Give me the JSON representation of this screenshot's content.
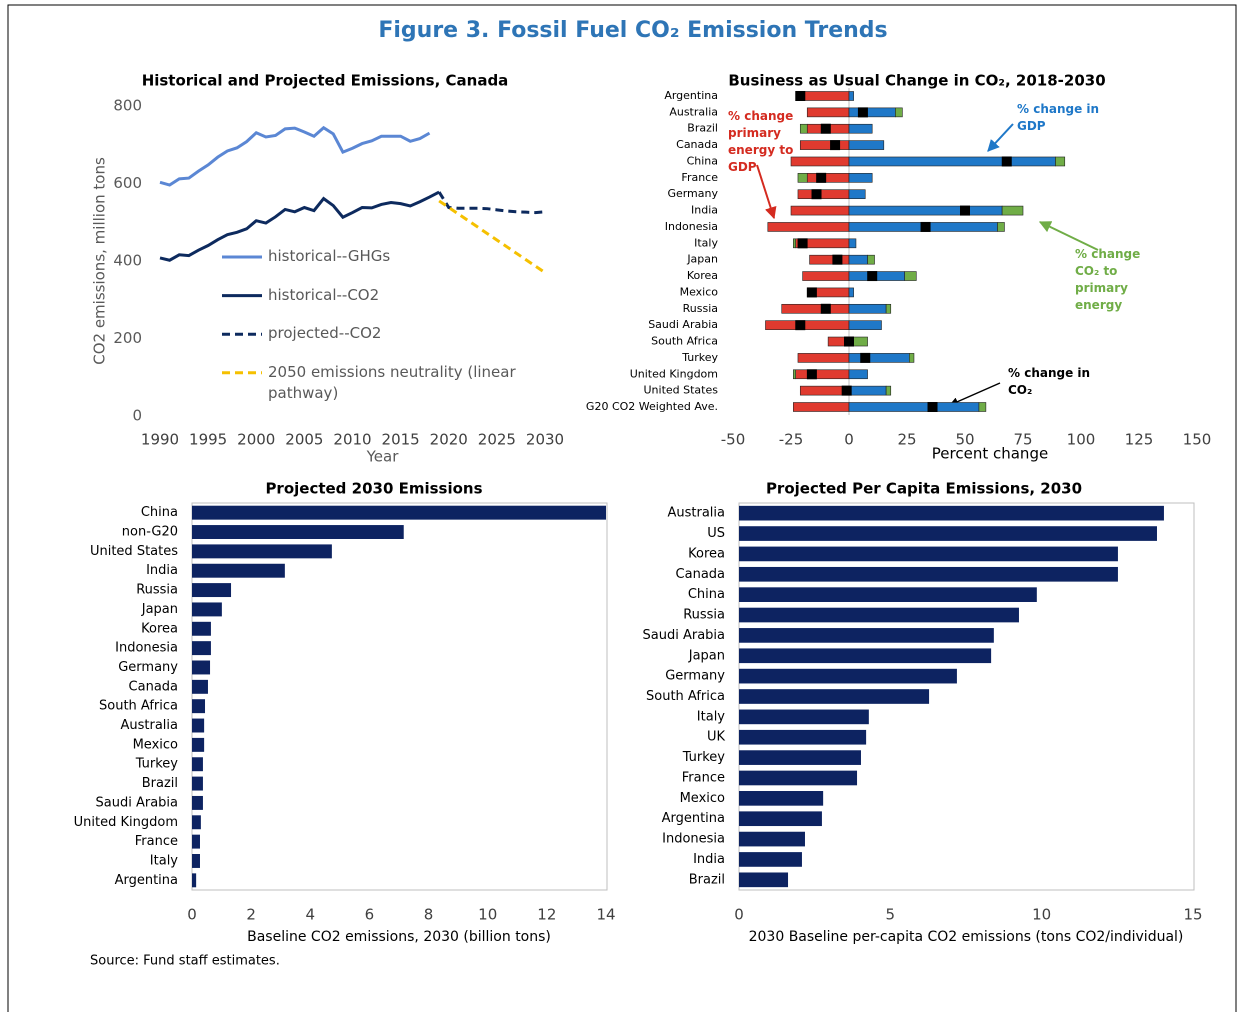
{
  "figure": {
    "title": "Figure 3. Fossil Fuel CO₂ Emission Trends",
    "source": "Source: Fund staff estimates."
  },
  "chart_data": [
    {
      "type": "line",
      "title": "Historical and Projected Emissions, Canada",
      "x_label": "Year",
      "y_label": "CO2 emissions, million tons",
      "xlim": [
        1990,
        2030
      ],
      "xticks": [
        1990,
        1995,
        2000,
        2005,
        2010,
        2015,
        2020,
        2025,
        2030
      ],
      "ylim": [
        0,
        800
      ],
      "yticks": [
        0,
        200,
        400,
        600,
        800
      ],
      "grid": false,
      "legend": "left",
      "series": [
        {
          "name": "historical--GHGs",
          "color": "#5b87d4",
          "dash": false,
          "x": [
            1990,
            1991,
            1992,
            1993,
            1994,
            1995,
            1996,
            1997,
            1998,
            1999,
            2000,
            2001,
            2002,
            2003,
            2004,
            2005,
            2006,
            2007,
            2008,
            2009,
            2010,
            2011,
            2012,
            2013,
            2014,
            2015,
            2016,
            2017,
            2018
          ],
          "values": [
            603,
            596,
            612,
            614,
            632,
            648,
            668,
            684,
            692,
            708,
            731,
            720,
            724,
            741,
            743,
            733,
            722,
            744,
            728,
            681,
            691,
            703,
            710,
            722,
            722,
            722,
            709,
            716,
            730
          ]
        },
        {
          "name": "historical--CO2",
          "color": "#0d2a5e",
          "dash": false,
          "x": [
            1990,
            1991,
            1992,
            1993,
            1994,
            1995,
            1996,
            1997,
            1998,
            1999,
            2000,
            2001,
            2002,
            2003,
            2004,
            2005,
            2006,
            2007,
            2008,
            2009,
            2010,
            2011,
            2012,
            2013,
            2014,
            2015,
            2016,
            2017,
            2018,
            2019
          ],
          "values": [
            408,
            402,
            416,
            414,
            428,
            440,
            455,
            468,
            474,
            483,
            504,
            498,
            514,
            533,
            527,
            538,
            530,
            561,
            543,
            513,
            525,
            538,
            537,
            546,
            551,
            548,
            542,
            553,
            565,
            578
          ]
        },
        {
          "name": "projected--CO2",
          "color": "#0d2a5e",
          "dash": true,
          "x": [
            2019,
            2020,
            2021,
            2022,
            2023,
            2024,
            2025,
            2026,
            2027,
            2028,
            2029,
            2030
          ],
          "values": [
            578,
            538,
            536,
            536,
            536,
            535,
            532,
            529,
            527,
            526,
            525,
            527
          ]
        },
        {
          "name": "2050 emissions neutrality (linear pathway)",
          "color": "#f5c000",
          "dash": true,
          "x": [
            2019,
            2030
          ],
          "values": [
            555,
            370
          ]
        }
      ]
    },
    {
      "type": "diverging",
      "title": "Business as Usual Change in CO₂, 2018-2030",
      "x_label": "Percent change",
      "xlim": [
        -50,
        150
      ],
      "xticks": [
        -50,
        -25,
        0,
        25,
        50,
        75,
        100,
        125,
        150
      ],
      "grid": false,
      "categories": [
        "Argentina",
        "Australia",
        "Brazil",
        "Canada",
        "China",
        "France",
        "Germany",
        "India",
        "Indonesia",
        "Italy",
        "Japan",
        "Korea",
        "Mexico",
        "Russia",
        "Saudi Arabia",
        "South Africa",
        "Turkey",
        "United Kingdom",
        "United States",
        "G20 CO2 Weighted Ave."
      ],
      "series": [
        {
          "name": "% change primary energy to GDP",
          "color": "#e03a2f",
          "values": [
            -22,
            -18,
            -18,
            -21,
            -25,
            -18,
            -22,
            -25,
            -35,
            -23,
            -17,
            -20,
            -18,
            -29,
            -36,
            -9,
            -22,
            -23,
            -21,
            -24
          ]
        },
        {
          "name": "% change in GDP",
          "color": "#1f78c8",
          "values": [
            2,
            20,
            10,
            15,
            89,
            10,
            7,
            66,
            64,
            3,
            8,
            24,
            2,
            16,
            14,
            2,
            26,
            8,
            16,
            56
          ]
        },
        {
          "name": "% change CO₂ to primary energy",
          "color": "#70ad47",
          "values": [
            0,
            3,
            -3,
            0,
            4,
            -4,
            0,
            9,
            3,
            -1,
            3,
            5,
            0,
            2,
            0,
            6,
            2,
            -1,
            2,
            3
          ]
        },
        {
          "name": "% change in CO₂",
          "color": "#000000",
          "values": [
            -21,
            6,
            -10,
            -6,
            68,
            -12,
            -14,
            50,
            33,
            -20,
            -5,
            10,
            -16,
            -10,
            -21,
            0,
            7,
            -16,
            -1,
            36
          ]
        }
      ]
    },
    {
      "type": "bar",
      "title": "Projected 2030 Emissions",
      "x_label": "Baseline CO2 emissions, 2030 (billion tons)",
      "xlim": [
        0,
        14
      ],
      "xticks": [
        0,
        2,
        4,
        6,
        8,
        10,
        12,
        14
      ],
      "grid": false,
      "color": "#0d2361",
      "categories": [
        "China",
        "non-G20",
        "United States",
        "India",
        "Russia",
        "Japan",
        "Korea",
        "Indonesia",
        "Germany",
        "Canada",
        "South Africa",
        "Australia",
        "Mexico",
        "Turkey",
        "Brazil",
        "Saudi Arabia",
        "United Kingdom",
        "France",
        "Italy",
        "Argentina"
      ],
      "values": [
        14.0,
        7.16,
        4.73,
        3.14,
        1.32,
        1.01,
        0.64,
        0.64,
        0.61,
        0.54,
        0.44,
        0.41,
        0.41,
        0.37,
        0.37,
        0.37,
        0.3,
        0.27,
        0.27,
        0.14
      ]
    },
    {
      "type": "bar",
      "title": "Projected Per Capita Emissions, 2030",
      "x_label": "2030 Baseline per-capita CO2 emissions (tons CO2/individual)",
      "xlim": [
        0,
        15
      ],
      "xticks": [
        0,
        5,
        10,
        15
      ],
      "grid": false,
      "color": "#0d2361",
      "categories": [
        "Australia",
        "US",
        "Korea",
        "Canada",
        "China",
        "Russia",
        "Saudi Arabia",
        "Japan",
        "Germany",
        "South Africa",
        "Italy",
        "UK",
        "Turkey",
        "France",
        "Mexico",
        "Argentina",
        "Indonesia",
        "India",
        "Brazil"
      ],
      "values": [
        14.04,
        13.81,
        12.52,
        12.52,
        9.84,
        9.25,
        8.42,
        8.33,
        7.2,
        6.28,
        4.29,
        4.2,
        4.03,
        3.9,
        2.78,
        2.74,
        2.18,
        2.08,
        1.62
      ]
    }
  ]
}
